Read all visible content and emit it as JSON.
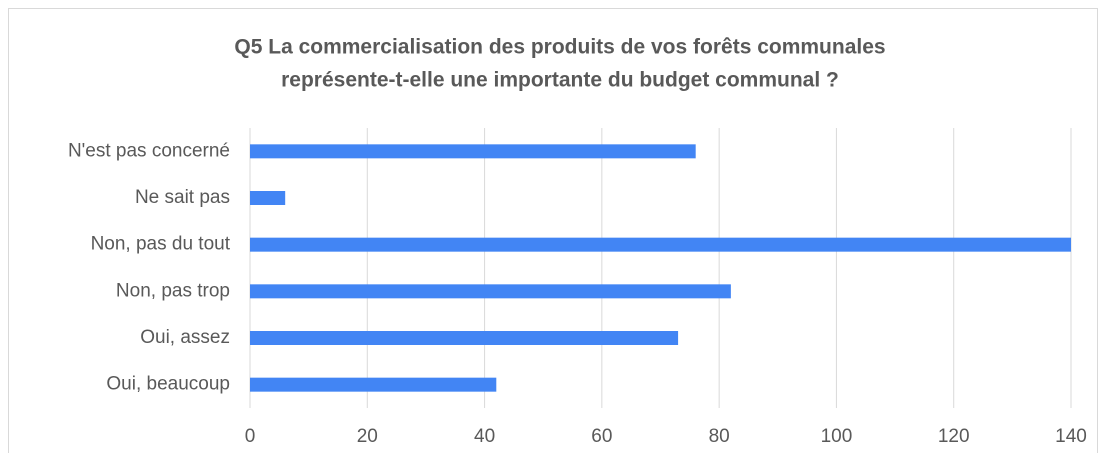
{
  "chart_data": {
    "type": "bar",
    "orientation": "horizontal",
    "title": [
      "Q5 La commercialisation des produits de vos forêts communales",
      "représente-t-elle une importante du budget communal ?"
    ],
    "categories": [
      "N'est pas concerné",
      "Ne sait pas",
      "Non, pas du tout",
      "Non, pas trop",
      "Oui, assez",
      "Oui, beaucoup"
    ],
    "values": [
      76,
      6,
      140,
      82,
      73,
      42
    ],
    "color": "#4285f4",
    "xlim": [
      0,
      140
    ],
    "xticks": [
      0,
      20,
      40,
      60,
      80,
      100,
      120,
      140
    ],
    "grid": true
  }
}
